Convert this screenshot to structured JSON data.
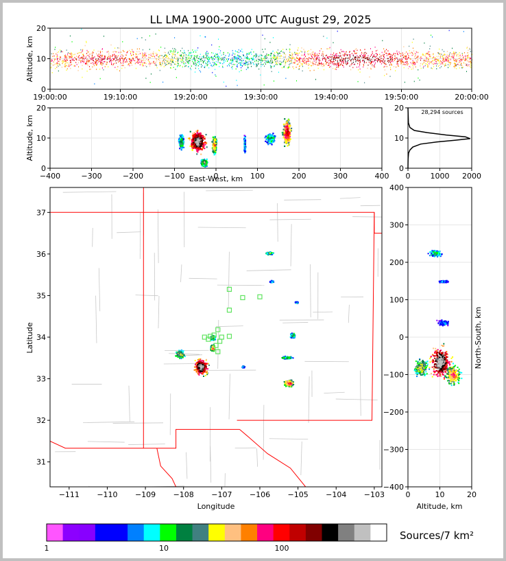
{
  "chart_data": [
    {
      "type": "scatter",
      "panel": "altitude-time",
      "title": "LL LMA 1900-2000 UTC August 29, 2025",
      "ylabel": "Altitude, km",
      "ylim": [
        0,
        20
      ],
      "xticks": [
        "19:00:00",
        "19:10:00",
        "19:20:00",
        "19:30:00",
        "19:40:00",
        "19:50:00",
        "20:00:00"
      ],
      "yticks": [
        "0",
        "10",
        "20"
      ],
      "altitude_core_km": [
        7,
        13
      ]
    },
    {
      "type": "scatter",
      "panel": "altitude-eastwest",
      "xlabel": "East-West, km",
      "ylabel": "Altitude, km",
      "xlim": [
        -400,
        400
      ],
      "ylim": [
        0,
        20
      ],
      "xticks": [
        "−400",
        "−300",
        "−200",
        "−100",
        "0",
        "100",
        "200",
        "300",
        "400"
      ],
      "yticks": [
        "0",
        "10",
        "20"
      ],
      "clusters": [
        {
          "x": -85,
          "alt": 9,
          "w": 16,
          "h": 6,
          "intensity": 0.4
        },
        {
          "x": -45,
          "alt": 9,
          "w": 50,
          "h": 9,
          "intensity": 1.0
        },
        {
          "x": -30,
          "alt": 2,
          "w": 20,
          "h": 3,
          "intensity": 0.5
        },
        {
          "x": -5,
          "alt": 8,
          "w": 14,
          "h": 7,
          "intensity": 0.6
        },
        {
          "x": 68,
          "alt": 8,
          "w": 4,
          "h": 7,
          "intensity": 0.3
        },
        {
          "x": 130,
          "alt": 10,
          "w": 30,
          "h": 4,
          "intensity": 0.35
        },
        {
          "x": 170,
          "alt": 12,
          "w": 26,
          "h": 11,
          "intensity": 0.75
        }
      ]
    },
    {
      "type": "line",
      "panel": "altitude-histogram",
      "annotation": "28,294 sources",
      "xlim": [
        0,
        2000
      ],
      "ylim": [
        0,
        20
      ],
      "xticks": [
        "0",
        "1000",
        "2000"
      ],
      "yticks": [
        "0",
        "10",
        "20"
      ],
      "x": [
        0,
        5,
        20,
        60,
        150,
        400,
        900,
        1500,
        1950,
        1800,
        1200,
        600,
        200,
        60,
        15,
        0
      ],
      "y": [
        0,
        3,
        5,
        6,
        7,
        8,
        8.7,
        9.3,
        9.8,
        10.4,
        11,
        11.8,
        12.5,
        13.5,
        15,
        20
      ]
    },
    {
      "type": "scatter",
      "panel": "plan-view",
      "xlabel": "Longitude",
      "ylabel": "Latitude",
      "xlim": [
        -111.5,
        -102.8
      ],
      "ylim": [
        30.4,
        37.6
      ],
      "xticks": [
        "−111",
        "−110",
        "−109",
        "−108",
        "−107",
        "−106",
        "−105",
        "−104",
        "−103"
      ],
      "yticks": [
        "31",
        "32",
        "33",
        "34",
        "35",
        "36",
        "37"
      ],
      "clusters": [
        {
          "lon": -108.1,
          "lat": 33.6,
          "w": 0.3,
          "h": 0.25,
          "intensity": 0.5
        },
        {
          "lon": -107.55,
          "lat": 33.3,
          "w": 0.45,
          "h": 0.5,
          "intensity": 1.0
        },
        {
          "lon": -107.25,
          "lat": 33.75,
          "w": 0.15,
          "h": 0.2,
          "intensity": 0.6
        },
        {
          "lon": -107.25,
          "lat": 34.0,
          "w": 0.15,
          "h": 0.15,
          "intensity": 0.5
        },
        {
          "lon": -105.3,
          "lat": 33.52,
          "w": 0.4,
          "h": 0.08,
          "intensity": 0.4
        },
        {
          "lon": -105.25,
          "lat": 32.9,
          "w": 0.3,
          "h": 0.2,
          "intensity": 0.7
        },
        {
          "lon": -105.15,
          "lat": 34.05,
          "w": 0.15,
          "h": 0.15,
          "intensity": 0.4
        },
        {
          "lon": -105.75,
          "lat": 36.03,
          "w": 0.3,
          "h": 0.08,
          "intensity": 0.4
        },
        {
          "lon": -106.45,
          "lat": 33.3,
          "w": 0.08,
          "h": 0.06,
          "intensity": 0.3
        },
        {
          "lon": -105.05,
          "lat": 34.85,
          "w": 0.1,
          "h": 0.05,
          "intensity": 0.3
        },
        {
          "lon": -105.7,
          "lat": 35.35,
          "w": 0.12,
          "h": 0.06,
          "intensity": 0.3
        }
      ],
      "stations": [
        [
          -106.8,
          35.15
        ],
        [
          -106.45,
          34.95
        ],
        [
          -106.0,
          34.97
        ],
        [
          -106.8,
          34.65
        ],
        [
          -107.1,
          34.18
        ],
        [
          -107.45,
          34.0
        ],
        [
          -107.3,
          34.02
        ],
        [
          -107.0,
          34.0
        ],
        [
          -106.8,
          34.02
        ],
        [
          -107.05,
          33.9
        ],
        [
          -107.15,
          33.8
        ],
        [
          -107.1,
          33.65
        ],
        [
          -107.35,
          33.95
        ],
        [
          -107.2,
          34.05
        ]
      ]
    },
    {
      "type": "scatter",
      "panel": "northsouth-altitude",
      "xlabel": "Altitude, km",
      "ylabel": "North-South, km",
      "xlim": [
        0,
        20
      ],
      "ylim": [
        -400,
        400
      ],
      "xticks": [
        "0",
        "10",
        "20"
      ],
      "yticks": [
        "−400",
        "−300",
        "−200",
        "−100",
        "0",
        "100",
        "200",
        "300",
        "400"
      ],
      "clusters": [
        {
          "alt": 10,
          "ns": -65,
          "w": 8,
          "h": 110,
          "intensity": 1.0
        },
        {
          "alt": 4,
          "ns": -80,
          "w": 6,
          "h": 60,
          "intensity": 0.5
        },
        {
          "alt": 14,
          "ns": -100,
          "w": 6,
          "h": 70,
          "intensity": 0.6
        },
        {
          "alt": 8.5,
          "ns": 225,
          "w": 5,
          "h": 22,
          "intensity": 0.35
        },
        {
          "alt": 11,
          "ns": 150,
          "w": 4,
          "h": 8,
          "intensity": 0.2
        },
        {
          "alt": 11,
          "ns": 40,
          "w": 5,
          "h": 20,
          "intensity": 0.2
        }
      ]
    }
  ],
  "colorbar": {
    "label": "Sources/7 km²",
    "ticks": [
      "1",
      "10",
      "100"
    ],
    "colors": [
      "#ff55ff",
      "#8c00ff",
      "#8800ff",
      "#0000ff",
      "#0000ff",
      "#0080ff",
      "#00ffff",
      "#00ff00",
      "#008040",
      "#408080",
      "#ffff00",
      "#ffc080",
      "#ff8000",
      "#ff0080",
      "#ff0000",
      "#c00000",
      "#800000",
      "#000000",
      "#808080",
      "#c0c0c0",
      "#ffffff"
    ]
  }
}
